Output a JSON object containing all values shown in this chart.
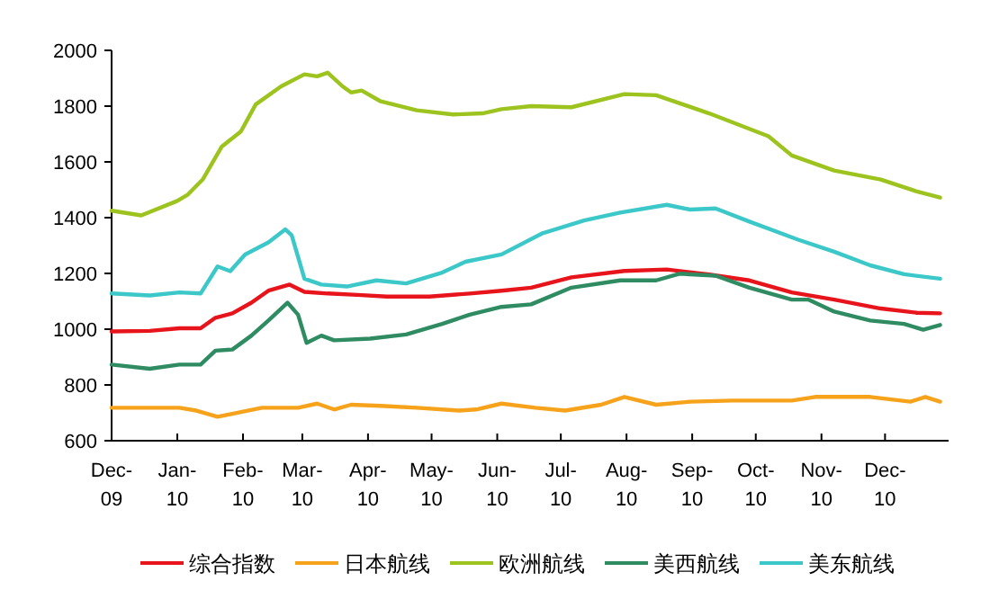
{
  "chart_data": {
    "type": "line",
    "legend": "bottom",
    "ylim": [
      600,
      2000
    ],
    "yticks": [
      600,
      800,
      1000,
      1200,
      1400,
      1600,
      1800,
      2000
    ],
    "xlim": [
      "2009-12-01",
      "2010-12-31"
    ],
    "xticks": [
      {
        "value": "2009-12-01",
        "label": "Dec-09"
      },
      {
        "value": "2010-01-01",
        "label": "Jan-10"
      },
      {
        "value": "2010-02-01",
        "label": "Feb-10"
      },
      {
        "value": "2010-03-01",
        "label": "Mar-10"
      },
      {
        "value": "2010-04-01",
        "label": "Apr-10"
      },
      {
        "value": "2010-05-01",
        "label": "May-10"
      },
      {
        "value": "2010-06-01",
        "label": "Jun-10"
      },
      {
        "value": "2010-07-01",
        "label": "Jul-10"
      },
      {
        "value": "2010-08-01",
        "label": "Aug-10"
      },
      {
        "value": "2010-09-01",
        "label": "Sep-10"
      },
      {
        "value": "2010-10-01",
        "label": "Oct-10"
      },
      {
        "value": "2010-11-01",
        "label": "Nov-10"
      },
      {
        "value": "2010-12-01",
        "label": "Dec-10"
      }
    ],
    "series": [
      {
        "name": "综合指数",
        "color": "#e8141c",
        "x": [
          "2009-12-01",
          "2009-12-19",
          "2010-01-02",
          "2010-01-12",
          "2010-01-19",
          "2010-01-27",
          "2010-02-05",
          "2010-02-13",
          "2010-02-23",
          "2010-03-02",
          "2010-03-13",
          "2010-03-27",
          "2010-04-10",
          "2010-04-30",
          "2010-05-19",
          "2010-06-03",
          "2010-06-17",
          "2010-07-06",
          "2010-07-31",
          "2010-08-20",
          "2010-09-09",
          "2010-09-28",
          "2010-10-18",
          "2010-11-07",
          "2010-11-29",
          "2010-12-16",
          "2010-12-27"
        ],
        "values": [
          992,
          994,
          1003,
          1003,
          1041,
          1057,
          1095,
          1138,
          1160,
          1134,
          1128,
          1123,
          1117,
          1117,
          1128,
          1138,
          1149,
          1186,
          1209,
          1214,
          1196,
          1175,
          1132,
          1106,
          1074,
          1059,
          1057
        ]
      },
      {
        "name": "日本航线",
        "color": "#f7a21b",
        "x": [
          "2009-12-01",
          "2010-01-02",
          "2010-01-10",
          "2010-01-20",
          "2010-01-30",
          "2010-02-10",
          "2010-02-27",
          "2010-03-08",
          "2010-03-16",
          "2010-03-24",
          "2010-04-07",
          "2010-04-24",
          "2010-05-14",
          "2010-05-22",
          "2010-06-03",
          "2010-06-19",
          "2010-07-03",
          "2010-07-20",
          "2010-07-31",
          "2010-08-15",
          "2010-08-31",
          "2010-09-20",
          "2010-10-18",
          "2010-10-29",
          "2010-11-24",
          "2010-12-13",
          "2010-12-20",
          "2010-12-27"
        ],
        "values": [
          718,
          718,
          708,
          686,
          701,
          718,
          718,
          733,
          712,
          729,
          725,
          718,
          708,
          712,
          733,
          718,
          708,
          729,
          757,
          729,
          740,
          744,
          744,
          757,
          757,
          740,
          757,
          740
        ]
      },
      {
        "name": "欧洲航线",
        "color": "#9dc31e",
        "x": [
          "2009-12-01",
          "2009-12-15",
          "2010-01-01",
          "2010-01-06",
          "2010-01-13",
          "2010-01-22",
          "2010-01-31",
          "2010-02-07",
          "2010-02-19",
          "2010-03-02",
          "2010-03-08",
          "2010-03-13",
          "2010-03-20",
          "2010-03-24",
          "2010-03-29",
          "2010-04-07",
          "2010-04-24",
          "2010-05-11",
          "2010-05-25",
          "2010-06-03",
          "2010-06-17",
          "2010-07-06",
          "2010-07-31",
          "2010-08-15",
          "2010-09-09",
          "2010-10-07",
          "2010-10-18",
          "2010-11-07",
          "2010-11-29",
          "2010-12-16",
          "2010-12-27"
        ],
        "values": [
          1425,
          1408,
          1460,
          1483,
          1537,
          1655,
          1709,
          1806,
          1871,
          1914,
          1907,
          1920,
          1871,
          1849,
          1856,
          1817,
          1785,
          1770,
          1774,
          1789,
          1800,
          1796,
          1843,
          1839,
          1774,
          1692,
          1623,
          1569,
          1537,
          1494,
          1472
        ]
      },
      {
        "name": "美西航线",
        "color": "#2e8b62",
        "x": [
          "2009-12-01",
          "2009-12-19",
          "2010-01-02",
          "2010-01-12",
          "2010-01-19",
          "2010-01-27",
          "2010-02-05",
          "2010-02-13",
          "2010-02-22",
          "2010-02-27",
          "2010-03-03",
          "2010-03-10",
          "2010-03-16",
          "2010-04-02",
          "2010-04-19",
          "2010-05-06",
          "2010-05-19",
          "2010-06-03",
          "2010-06-17",
          "2010-07-06",
          "2010-07-29",
          "2010-08-15",
          "2010-08-26",
          "2010-09-12",
          "2010-09-28",
          "2010-10-18",
          "2010-10-26",
          "2010-11-07",
          "2010-11-24",
          "2010-12-10",
          "2010-12-19",
          "2010-12-27"
        ],
        "values": [
          873,
          858,
          873,
          873,
          923,
          927,
          977,
          1031,
          1095,
          1052,
          951,
          977,
          960,
          966,
          981,
          1019,
          1052,
          1080,
          1089,
          1149,
          1175,
          1175,
          1199,
          1192,
          1149,
          1106,
          1106,
          1063,
          1031,
          1019,
          998,
          1015
        ]
      },
      {
        "name": "美东航线",
        "color": "#3cc8c8",
        "x": [
          "2009-12-01",
          "2009-12-19",
          "2010-01-02",
          "2010-01-12",
          "2010-01-20",
          "2010-01-26",
          "2010-02-02",
          "2010-02-13",
          "2010-02-21",
          "2010-02-24",
          "2010-03-02",
          "2010-03-10",
          "2010-03-22",
          "2010-04-05",
          "2010-04-19",
          "2010-05-06",
          "2010-05-17",
          "2010-06-03",
          "2010-06-22",
          "2010-07-12",
          "2010-07-29",
          "2010-08-20",
          "2010-08-31",
          "2010-09-12",
          "2010-09-28",
          "2010-10-21",
          "2010-11-07",
          "2010-11-24",
          "2010-12-10",
          "2010-12-27"
        ],
        "values": [
          1128,
          1121,
          1132,
          1128,
          1225,
          1208,
          1268,
          1311,
          1358,
          1337,
          1181,
          1160,
          1153,
          1175,
          1164,
          1203,
          1242,
          1268,
          1343,
          1390,
          1418,
          1446,
          1429,
          1433,
          1386,
          1321,
          1278,
          1229,
          1197,
          1181
        ]
      }
    ]
  }
}
